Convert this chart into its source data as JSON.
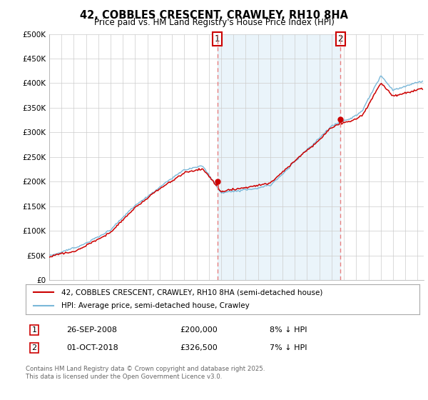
{
  "title": "42, COBBLES CRESCENT, CRAWLEY, RH10 8HA",
  "subtitle": "Price paid vs. HM Land Registry's House Price Index (HPI)",
  "legend_line1": "42, COBBLES CRESCENT, CRAWLEY, RH10 8HA (semi-detached house)",
  "legend_line2": "HPI: Average price, semi-detached house, Crawley",
  "marker1_date": "26-SEP-2008",
  "marker1_price": 200000,
  "marker1_label": "£200,000",
  "marker1_hpi": "8% ↓ HPI",
  "marker2_date": "01-OCT-2018",
  "marker2_price": 326500,
  "marker2_label": "£326,500",
  "marker2_hpi": "7% ↓ HPI",
  "copyright": "Contains HM Land Registry data © Crown copyright and database right 2025.\nThis data is licensed under the Open Government Licence v3.0.",
  "hpi_color": "#7ab8d9",
  "hpi_fill_color": "#ddeef7",
  "price_color": "#cc0000",
  "marker_color": "#cc0000",
  "dashed_line_color": "#e88080",
  "background_color": "#ffffff",
  "grid_color": "#cccccc",
  "ylim": [
    0,
    500000
  ],
  "yticks": [
    0,
    50000,
    100000,
    150000,
    200000,
    250000,
    300000,
    350000,
    400000,
    450000,
    500000
  ],
  "year_start": 1995,
  "year_end": 2025,
  "marker1_year": 2008.73,
  "marker2_year": 2018.75,
  "seed": 12
}
